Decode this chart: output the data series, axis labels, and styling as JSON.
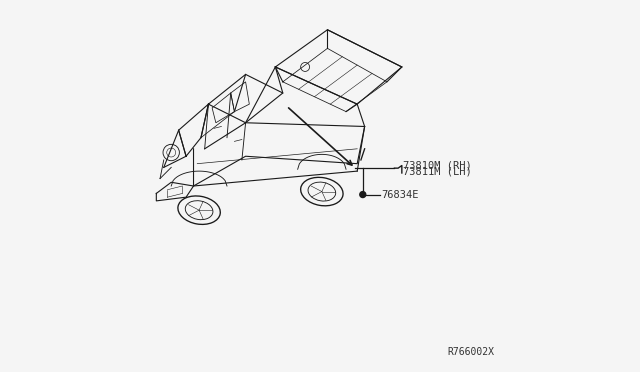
{
  "background_color": "#f5f5f5",
  "diagram_code": "R766002X",
  "line_color": "#1a1a1a",
  "text_color": "#333333",
  "label1": "73810M (RH)",
  "label2": "73811M (LH)",
  "label3": "76834E"
}
